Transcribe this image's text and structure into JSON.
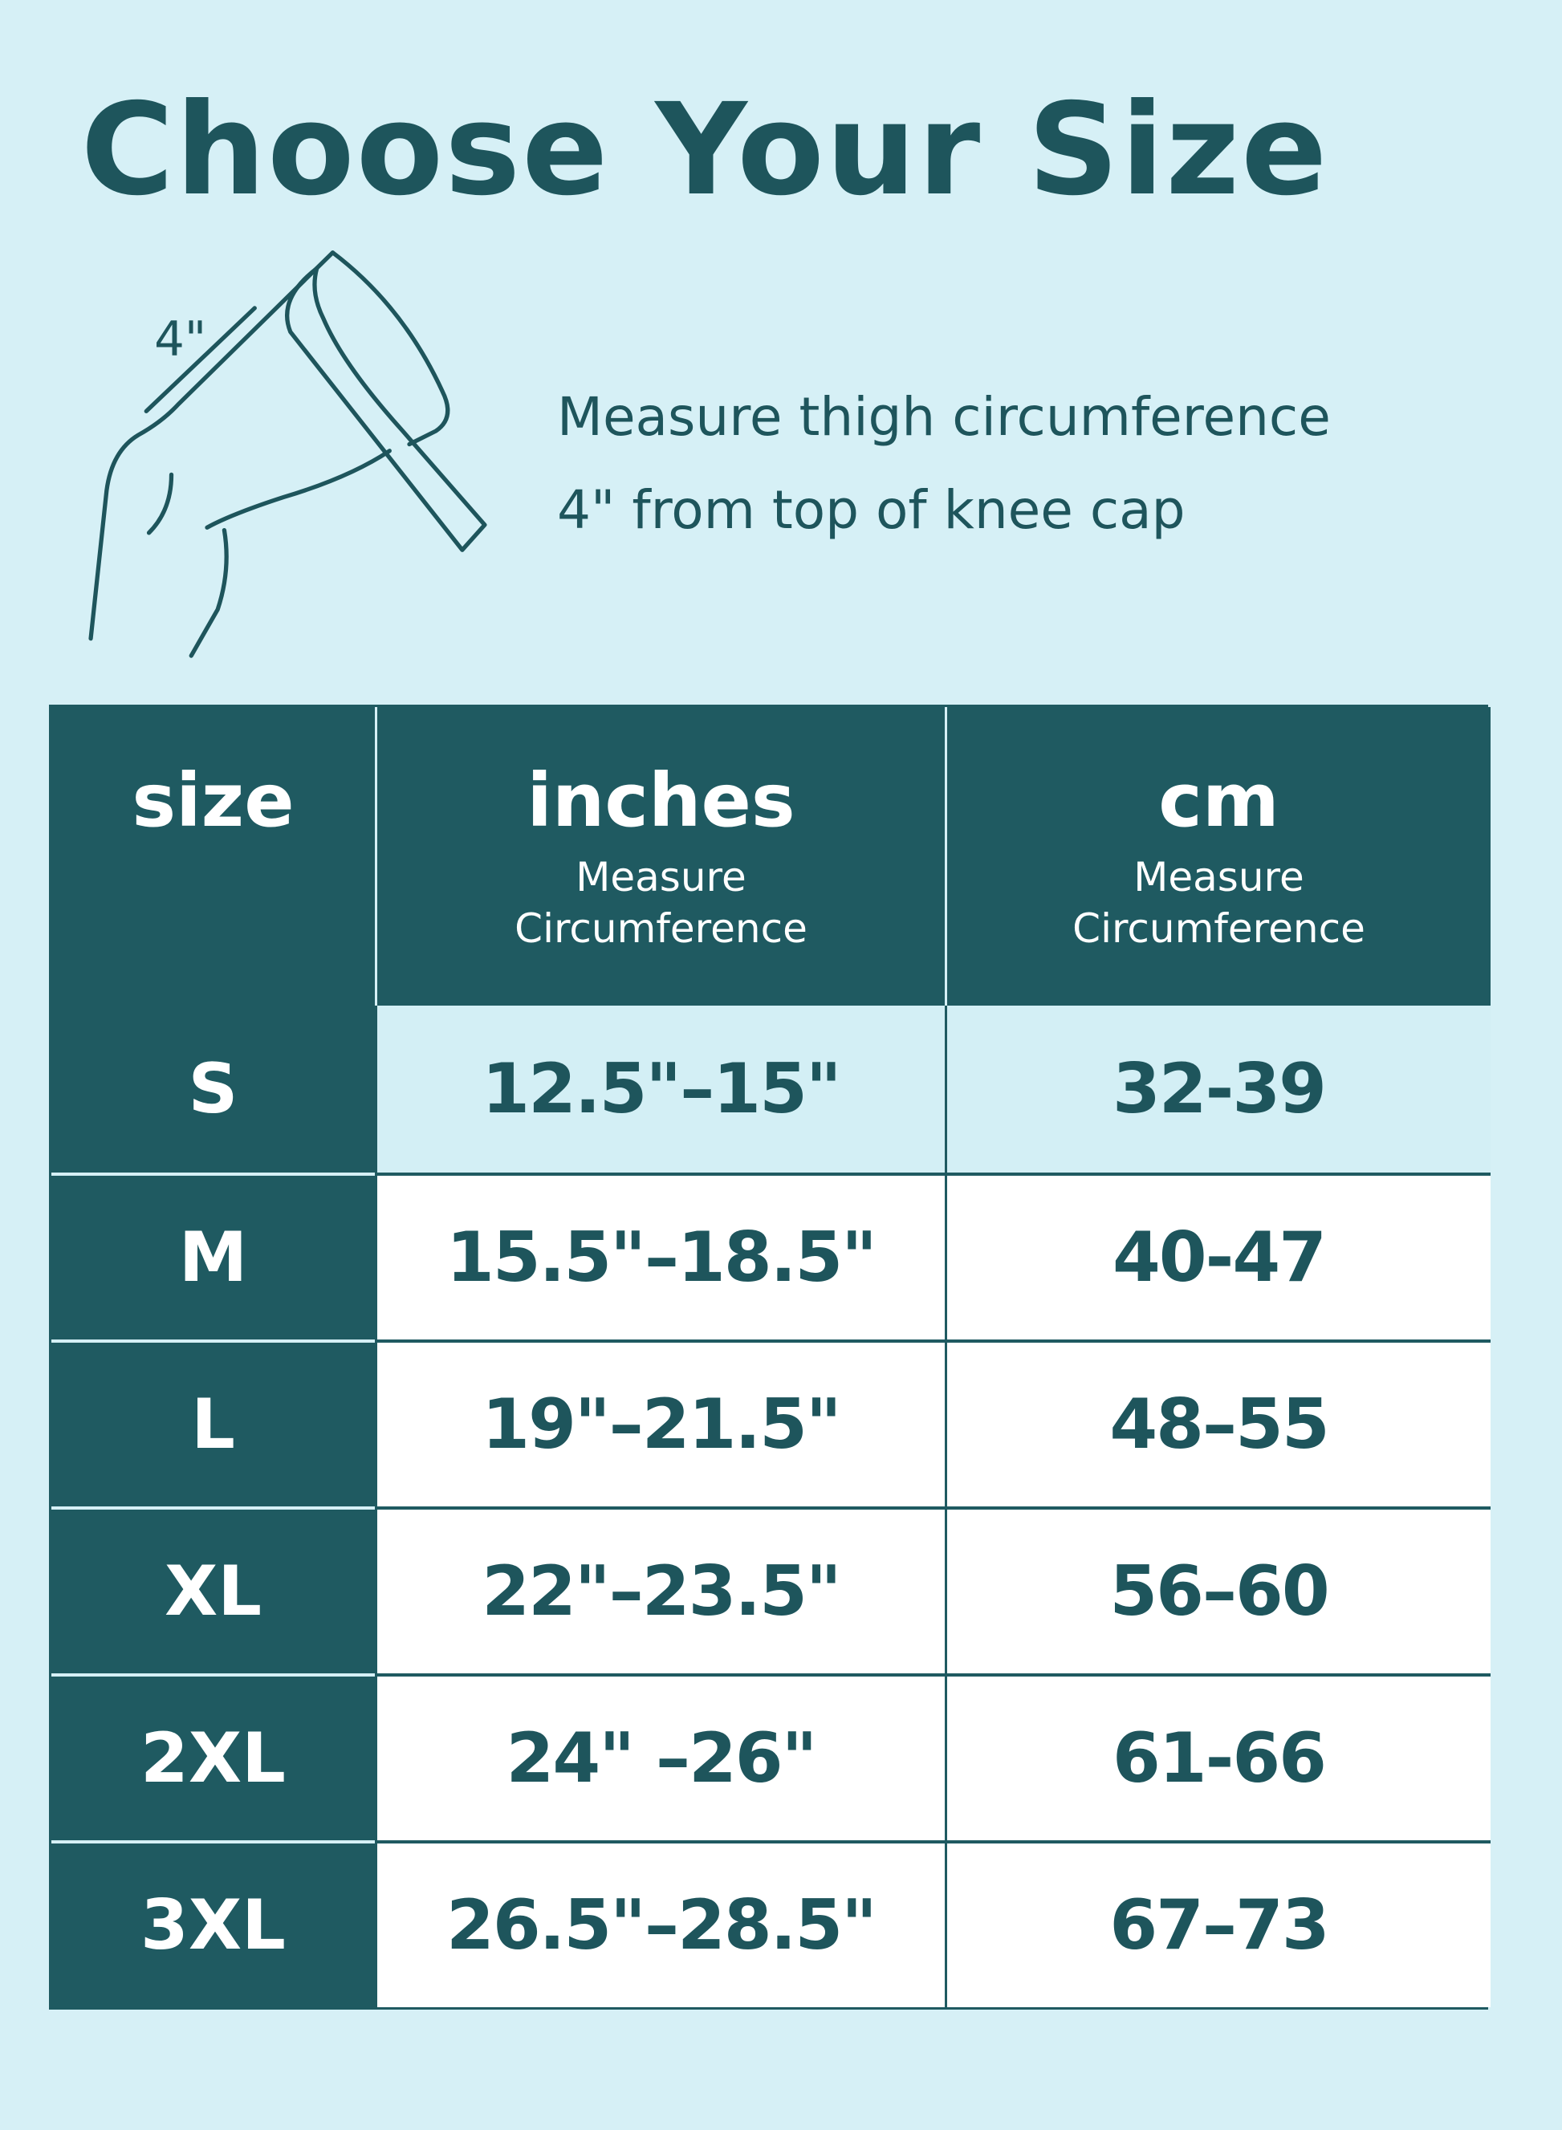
{
  "title": "Choose Your Size",
  "illustration": {
    "icon": "knee-measuring-tape-icon",
    "label": "4\""
  },
  "instructions": [
    "Measure thigh circumference",
    "4\" from top of knee cap"
  ],
  "table": {
    "headers": [
      {
        "label": "size",
        "sub": ""
      },
      {
        "label": "inches",
        "sub1": "Measure",
        "sub2": "Circumference"
      },
      {
        "label": "cm",
        "sub1": "Measure",
        "sub2": "Circumference"
      }
    ],
    "rows": [
      {
        "size": "S",
        "inches": "12.5\"–15\"",
        "cm": "32-39"
      },
      {
        "size": "M",
        "inches": "15.5\"–18.5\"",
        "cm": "40-47"
      },
      {
        "size": "L",
        "inches": "19\"–21.5\"",
        "cm": "48–55"
      },
      {
        "size": "XL",
        "inches": "22\"–23.5\"",
        "cm": "56–60"
      },
      {
        "size": "2XL",
        "inches": "24\" –26\"",
        "cm": "61-66"
      },
      {
        "size": "3XL",
        "inches": "26.5\"–28.5\"",
        "cm": "67–73"
      }
    ]
  },
  "colors": {
    "background": "#d6f0f6",
    "primary": "#1f5a61",
    "highlight_row": "#d3eff5"
  }
}
